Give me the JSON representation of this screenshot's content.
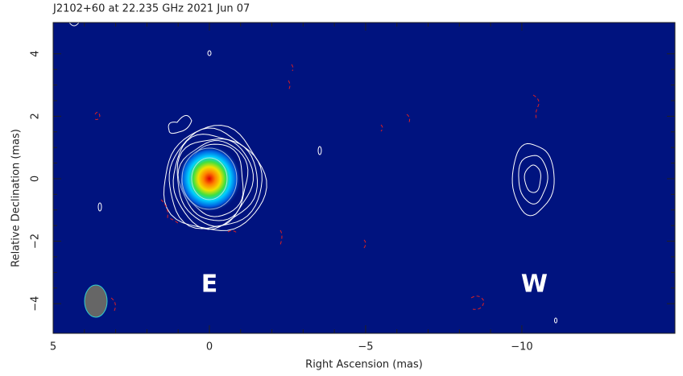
{
  "chart_data": {
    "type": "image",
    "title": "J2102+60 at 22.235 GHz 2021 Jun 07",
    "x_label": "Right Ascension  (mas)",
    "y_label": "Relative Declination  (mas)",
    "xlim": [
      5,
      -14.9
    ],
    "ylim": [
      -4.95,
      5
    ],
    "xticks": [
      5,
      0,
      {
        "value": -5,
        "label": "−5"
      },
      {
        "value": -10,
        "label": "−10"
      }
    ],
    "yticks": [
      4,
      2,
      0,
      {
        "value": -2,
        "label": "−2"
      },
      {
        "value": -4,
        "label": "−4"
      }
    ],
    "components": [
      {
        "x": 0,
        "y": 0
      },
      {
        "x": -10.3,
        "y": 0
      }
    ],
    "annotations": [
      {
        "text": "E",
        "x": 0,
        "y": -3.4
      },
      {
        "text": "W",
        "x": -10.4,
        "y": -3.4
      }
    ],
    "background": "#00137f"
  }
}
